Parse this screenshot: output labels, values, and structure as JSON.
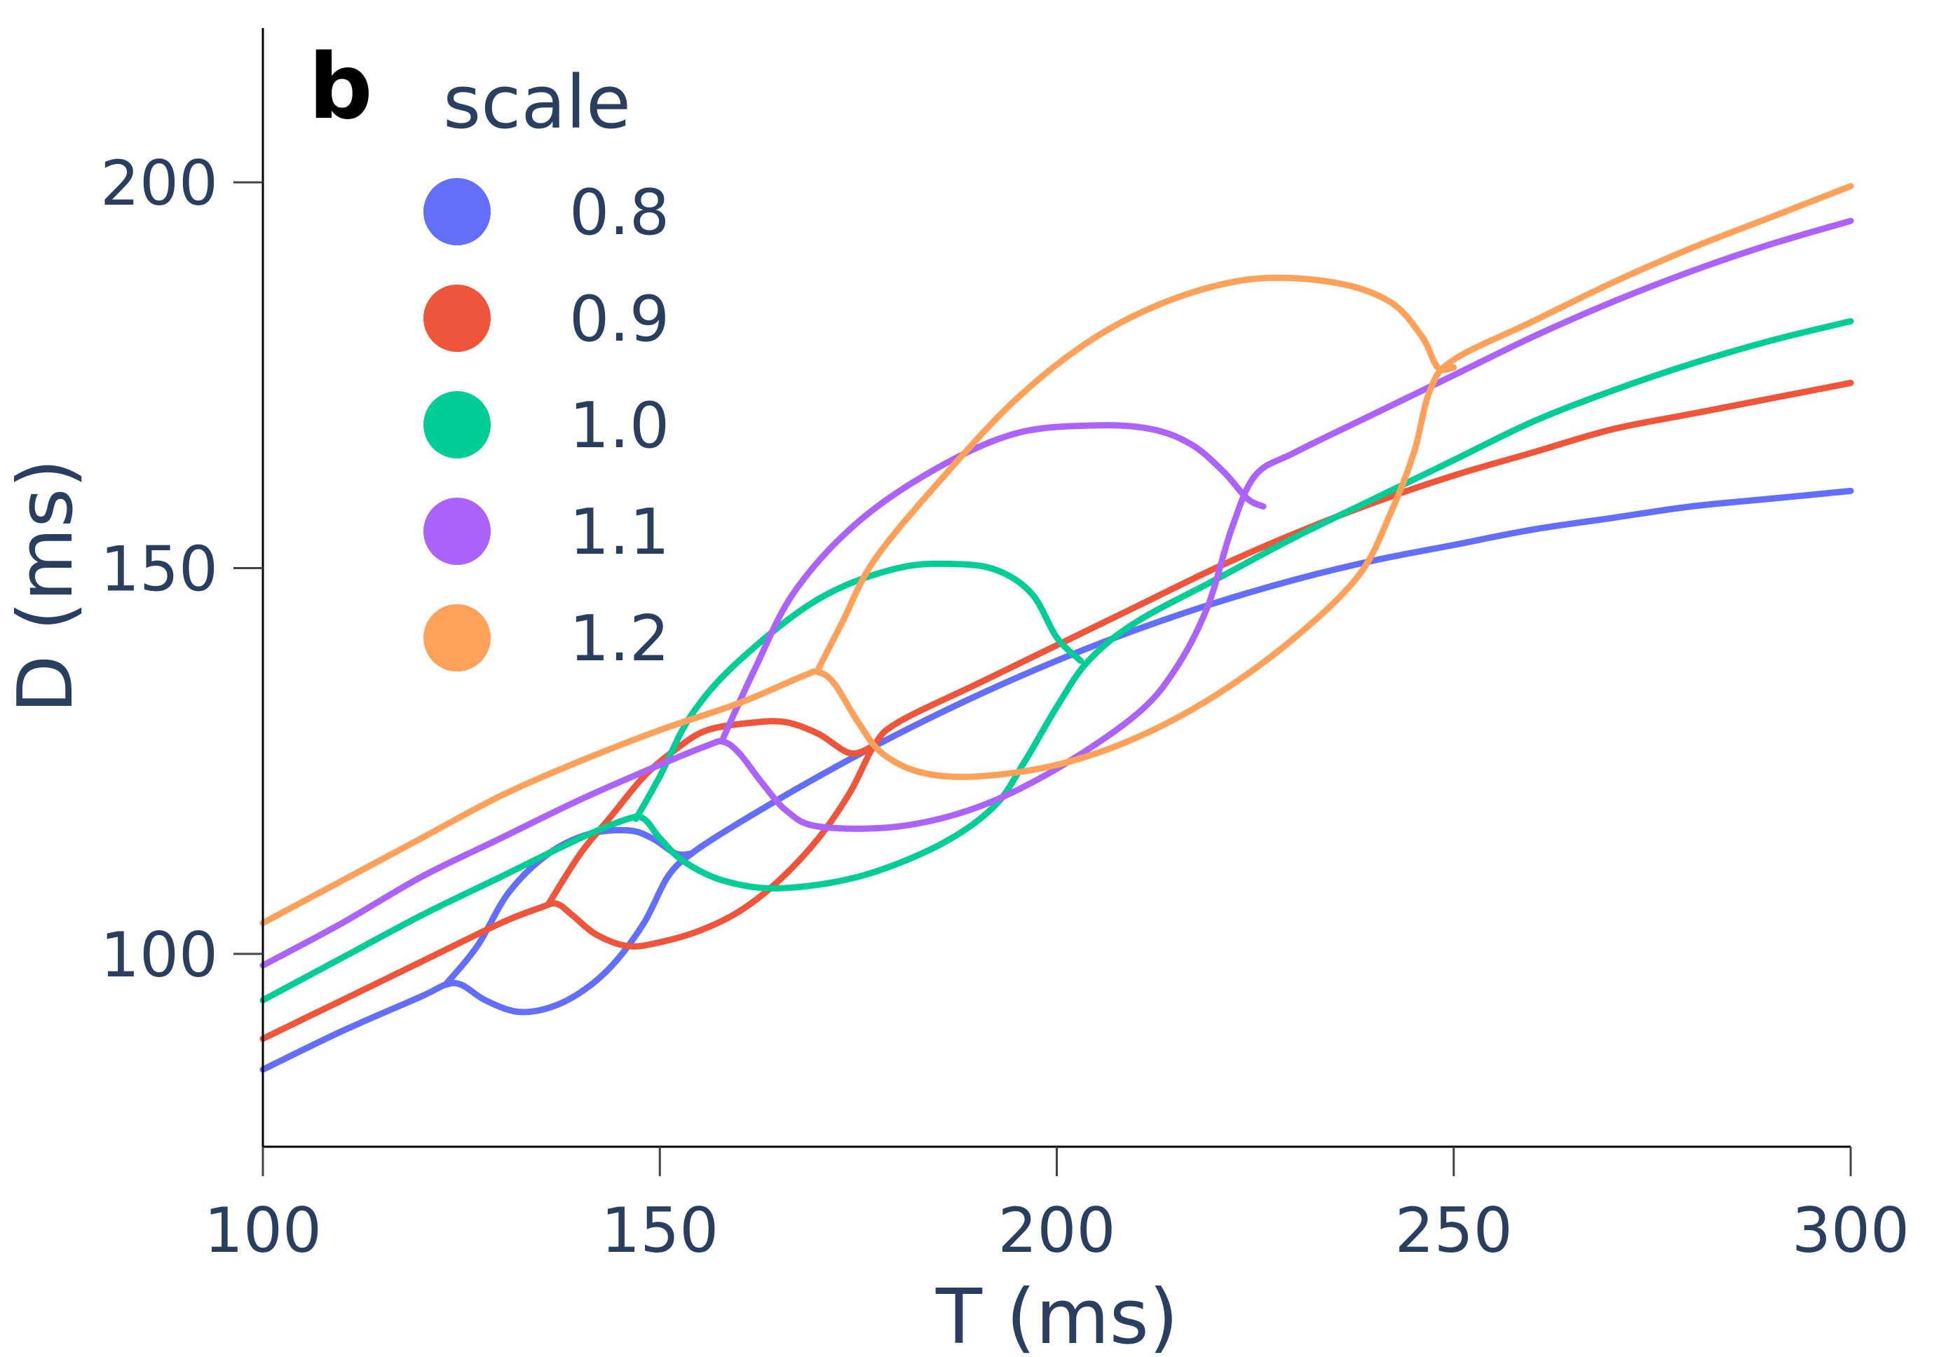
{
  "panel_label": "b",
  "chart_data": {
    "type": "line",
    "title": "",
    "xlabel": "T (ms)",
    "ylabel": "D (ms)",
    "xlim": [
      100,
      300
    ],
    "ylim": [
      75,
      220
    ],
    "x_ticks": [
      100,
      150,
      200,
      250,
      300
    ],
    "y_ticks": [
      100,
      150,
      200
    ],
    "grid": false,
    "legend": {
      "title": "scale",
      "position": "top-left"
    },
    "series": [
      {
        "name": "0.8",
        "color": "#636efa",
        "points": [
          [
            100,
            85
          ],
          [
            110,
            90
          ],
          [
            120,
            94.5
          ],
          [
            123,
            96
          ],
          [
            125,
            96
          ],
          [
            128,
            94
          ],
          [
            132,
            92.5
          ],
          [
            136,
            93
          ],
          [
            140,
            95
          ],
          [
            144,
            98.5
          ],
          [
            148,
            104
          ],
          [
            151,
            110
          ],
          [
            154,
            113
          ],
          [
            160,
            117
          ],
          [
            170,
            123
          ],
          [
            180,
            128.5
          ],
          [
            190,
            133.5
          ],
          [
            200,
            138
          ],
          [
            210,
            142
          ],
          [
            220,
            145.5
          ],
          [
            230,
            148.5
          ],
          [
            240,
            151
          ],
          [
            250,
            153
          ],
          [
            260,
            155
          ],
          [
            270,
            156.5
          ],
          [
            280,
            158
          ],
          [
            290,
            159
          ],
          [
            300,
            160
          ]
        ],
        "fold_branch": [
          [
            123,
            96
          ],
          [
            127,
            101
          ],
          [
            131,
            108
          ],
          [
            136,
            113
          ],
          [
            141,
            115.5
          ],
          [
            146,
            116
          ],
          [
            149,
            115
          ],
          [
            152,
            113
          ],
          [
            154,
            113
          ]
        ]
      },
      {
        "name": "0.9",
        "color": "#ef553b",
        "points": [
          [
            100,
            89
          ],
          [
            110,
            94
          ],
          [
            120,
            99
          ],
          [
            130,
            104
          ],
          [
            135,
            106
          ],
          [
            137,
            106.5
          ],
          [
            139,
            105
          ],
          [
            142,
            102.5
          ],
          [
            146,
            101
          ],
          [
            150,
            101.5
          ],
          [
            155,
            103
          ],
          [
            160,
            105.5
          ],
          [
            165,
            109.5
          ],
          [
            170,
            115
          ],
          [
            174,
            121
          ],
          [
            177,
            127
          ],
          [
            180,
            130
          ],
          [
            190,
            135
          ],
          [
            200,
            140
          ],
          [
            210,
            145
          ],
          [
            220,
            150
          ],
          [
            230,
            154.5
          ],
          [
            240,
            158.5
          ],
          [
            250,
            162
          ],
          [
            260,
            165
          ],
          [
            270,
            168
          ],
          [
            280,
            170
          ],
          [
            290,
            172
          ],
          [
            300,
            174
          ]
        ],
        "fold_branch": [
          [
            136,
            106.5
          ],
          [
            140,
            113
          ],
          [
            144,
            118
          ],
          [
            148,
            123
          ],
          [
            152,
            126.5
          ],
          [
            156,
            129
          ],
          [
            162,
            130
          ],
          [
            166,
            130
          ],
          [
            170,
            128.5
          ],
          [
            174,
            126
          ],
          [
            177,
            127
          ]
        ]
      },
      {
        "name": "1.0",
        "color": "#00cc96",
        "points": [
          [
            100,
            94
          ],
          [
            110,
            99.5
          ],
          [
            120,
            105
          ],
          [
            130,
            110
          ],
          [
            140,
            115
          ],
          [
            146,
            117.5
          ],
          [
            148,
            117.5
          ],
          [
            150,
            115
          ],
          [
            153,
            112
          ],
          [
            158,
            109.5
          ],
          [
            165,
            108.5
          ],
          [
            175,
            110
          ],
          [
            185,
            114
          ],
          [
            192,
            119
          ],
          [
            196,
            125
          ],
          [
            200,
            132
          ],
          [
            204,
            138
          ],
          [
            210,
            143
          ],
          [
            220,
            148.5
          ],
          [
            230,
            154
          ],
          [
            240,
            159
          ],
          [
            250,
            164
          ],
          [
            260,
            169
          ],
          [
            270,
            173
          ],
          [
            280,
            176.5
          ],
          [
            290,
            179.5
          ],
          [
            300,
            182
          ]
        ],
        "fold_branch": [
          [
            147,
            117.5
          ],
          [
            150,
            123
          ],
          [
            154,
            131
          ],
          [
            160,
            138
          ],
          [
            170,
            146
          ],
          [
            180,
            150
          ],
          [
            188,
            150.5
          ],
          [
            193,
            149.5
          ],
          [
            197,
            146.5
          ],
          [
            200,
            141
          ],
          [
            203,
            138
          ]
        ]
      },
      {
        "name": "1.1",
        "color": "#ab63fa",
        "points": [
          [
            100,
            98.5
          ],
          [
            110,
            104
          ],
          [
            120,
            110
          ],
          [
            130,
            115
          ],
          [
            140,
            120
          ],
          [
            150,
            124.5
          ],
          [
            156,
            127
          ],
          [
            158,
            127.5
          ],
          [
            160,
            126
          ],
          [
            163,
            122
          ],
          [
            166,
            118.5
          ],
          [
            170,
            116.5
          ],
          [
            180,
            116.5
          ],
          [
            190,
            119
          ],
          [
            200,
            124
          ],
          [
            210,
            131
          ],
          [
            215,
            137
          ],
          [
            219,
            145
          ],
          [
            222,
            155
          ],
          [
            225,
            162
          ],
          [
            230,
            165
          ],
          [
            240,
            170
          ],
          [
            250,
            175
          ],
          [
            260,
            180
          ],
          [
            270,
            184.5
          ],
          [
            280,
            188.5
          ],
          [
            290,
            192
          ],
          [
            300,
            195
          ]
        ],
        "fold_branch": [
          [
            158,
            128
          ],
          [
            162,
            137
          ],
          [
            167,
            147
          ],
          [
            175,
            156
          ],
          [
            185,
            163
          ],
          [
            195,
            167.5
          ],
          [
            205,
            168.5
          ],
          [
            212,
            168
          ],
          [
            217,
            166
          ],
          [
            221,
            162.5
          ],
          [
            224,
            159
          ],
          [
            226,
            158
          ]
        ]
      },
      {
        "name": "1.2",
        "color": "#ffa15a",
        "points": [
          [
            100,
            104
          ],
          [
            110,
            109.5
          ],
          [
            120,
            115
          ],
          [
            130,
            120.5
          ],
          [
            140,
            125
          ],
          [
            150,
            129
          ],
          [
            160,
            132.5
          ],
          [
            168,
            136
          ],
          [
            170,
            136.5
          ],
          [
            172,
            135
          ],
          [
            175,
            130
          ],
          [
            178,
            126
          ],
          [
            183,
            123.5
          ],
          [
            190,
            123
          ],
          [
            200,
            124.5
          ],
          [
            210,
            128
          ],
          [
            220,
            133.5
          ],
          [
            230,
            141
          ],
          [
            238,
            149
          ],
          [
            242,
            157
          ],
          [
            245,
            165
          ],
          [
            247,
            173
          ],
          [
            250,
            177
          ],
          [
            260,
            182
          ],
          [
            270,
            187
          ],
          [
            280,
            191.5
          ],
          [
            290,
            195.5
          ],
          [
            300,
            199.5
          ]
        ],
        "fold_branch": [
          [
            170,
            137
          ],
          [
            173,
            143
          ],
          [
            177,
            151
          ],
          [
            185,
            161
          ],
          [
            195,
            172
          ],
          [
            205,
            180
          ],
          [
            215,
            185
          ],
          [
            225,
            187.5
          ],
          [
            235,
            187
          ],
          [
            242,
            184.5
          ],
          [
            246,
            180
          ],
          [
            248,
            176
          ],
          [
            250,
            176
          ]
        ]
      }
    ]
  }
}
